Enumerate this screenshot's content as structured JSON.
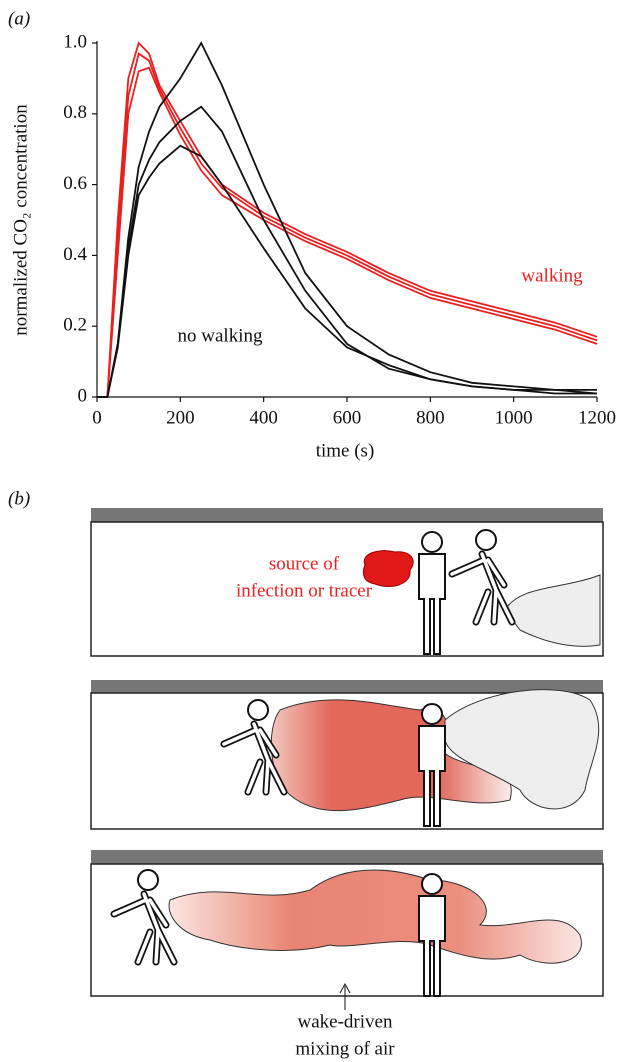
{
  "panel_a": {
    "label": "(a)"
  },
  "chart_data": {
    "type": "line",
    "xlabel": "time (s)",
    "ylabel": "normalized CO₂ concentration",
    "x": [
      0,
      25,
      50,
      75,
      100,
      125,
      150,
      200,
      250,
      300,
      400,
      500,
      600,
      700,
      800,
      900,
      1000,
      1100,
      1200
    ],
    "series": [
      {
        "color": "#e8201f",
        "values": [
          0,
          0,
          0.5,
          0.9,
          1.0,
          0.97,
          0.88,
          0.78,
          0.68,
          0.6,
          0.52,
          0.46,
          0.41,
          0.35,
          0.3,
          0.27,
          0.24,
          0.21,
          0.17
        ]
      },
      {
        "color": "#e8201f",
        "values": [
          0,
          0,
          0.45,
          0.85,
          0.97,
          0.95,
          0.87,
          0.76,
          0.66,
          0.59,
          0.51,
          0.45,
          0.4,
          0.34,
          0.29,
          0.26,
          0.23,
          0.2,
          0.16
        ]
      },
      {
        "color": "#e8201f",
        "values": [
          0,
          0,
          0.4,
          0.8,
          0.92,
          0.93,
          0.86,
          0.74,
          0.64,
          0.57,
          0.5,
          0.44,
          0.39,
          0.33,
          0.28,
          0.25,
          0.22,
          0.19,
          0.15
        ]
      },
      {
        "color": "#111111",
        "values": [
          0,
          0,
          0.15,
          0.45,
          0.65,
          0.75,
          0.82,
          0.9,
          1.0,
          0.88,
          0.6,
          0.35,
          0.2,
          0.12,
          0.07,
          0.04,
          0.03,
          0.02,
          0.02
        ]
      },
      {
        "color": "#111111",
        "values": [
          0,
          0,
          0.15,
          0.42,
          0.6,
          0.67,
          0.72,
          0.78,
          0.82,
          0.75,
          0.5,
          0.3,
          0.15,
          0.08,
          0.05,
          0.03,
          0.02,
          0.02,
          0.01
        ]
      },
      {
        "color": "#111111",
        "values": [
          0,
          0,
          0.14,
          0.4,
          0.57,
          0.62,
          0.66,
          0.71,
          0.68,
          0.6,
          0.42,
          0.25,
          0.14,
          0.09,
          0.05,
          0.03,
          0.02,
          0.01,
          0.01
        ]
      }
    ],
    "xlim": [
      0,
      1200
    ],
    "xticks": [
      0,
      200,
      400,
      600,
      800,
      1000,
      1200
    ],
    "ylim": [
      0,
      1
    ],
    "yticks": [
      0,
      0.2,
      0.4,
      0.6,
      0.8,
      {
        "value": 1,
        "label": "1.0"
      }
    ],
    "annotations": [
      {
        "text": "walking",
        "color": "#e8201f"
      },
      {
        "text": "no walking",
        "color": "#111111"
      }
    ]
  },
  "panel_b": {
    "label": "(b)",
    "source_label": [
      "source of",
      "infection or tracer"
    ],
    "mixing_label": [
      "wake-driven",
      "mixing of air"
    ]
  }
}
